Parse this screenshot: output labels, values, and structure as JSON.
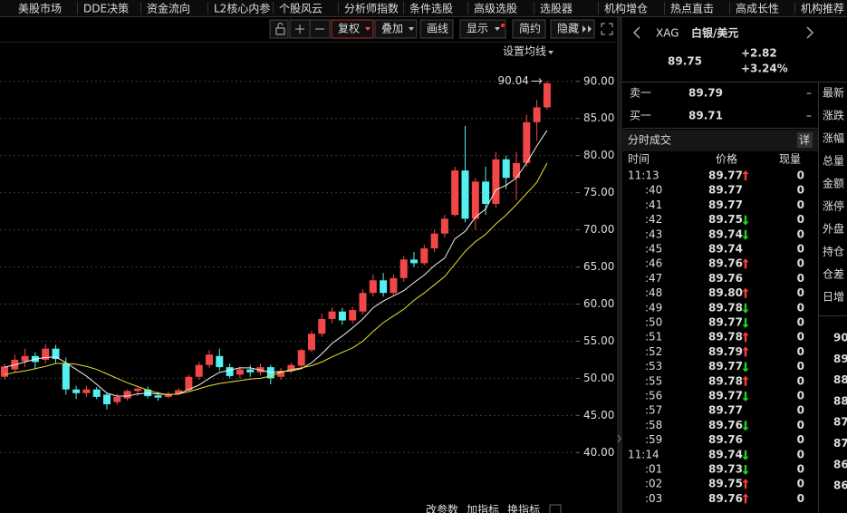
{
  "menu": [
    "美股市场",
    "DDE决策",
    "资金流向",
    "L2核心内参",
    "个股风云",
    "分析师指数",
    "条件选股",
    "高级选股",
    "选股器",
    "机构增仓",
    "热点直击",
    "高成长性",
    "机构推荐"
  ],
  "toolbar": {
    "buttons": [
      "复权",
      "叠加",
      "画线",
      "显示",
      "简约",
      "隐藏"
    ],
    "ma_setting": "设置均线",
    "bottom": [
      "改参数",
      "加指标",
      "换指标"
    ]
  },
  "chart_data": {
    "type": "candlestick",
    "up_color": "#f04848",
    "down_color": "#54f0f0",
    "grid": true,
    "ylim": [
      33.2,
      95.1
    ],
    "yticks": [
      {
        "value": 40,
        "label": "40.00"
      },
      {
        "value": 45,
        "label": "45.00"
      },
      {
        "value": 50,
        "label": "50.00"
      },
      {
        "value": 55,
        "label": "55.00"
      },
      {
        "value": 60,
        "label": "60.00"
      },
      {
        "value": 65,
        "label": "65.00"
      },
      {
        "value": 70,
        "label": "70.00"
      },
      {
        "value": 75,
        "label": "75.00"
      },
      {
        "value": 80,
        "label": "80.00"
      },
      {
        "value": 85,
        "label": "85.00"
      },
      {
        "value": 90,
        "label": "90.00"
      }
    ],
    "open": [
      50.2,
      51.2,
      52.3,
      53.0,
      52.5,
      54.0,
      52.0,
      48.5,
      48.0,
      48.5,
      47.8,
      46.8,
      47.3,
      48.3,
      48.5,
      47.7,
      47.5,
      47.9,
      48.4,
      50.2,
      51.8,
      53.0,
      51.5,
      50.5,
      51.2,
      50.8,
      51.5,
      50.2,
      51.0,
      51.7,
      53.8,
      56.0,
      58.0,
      59.0,
      57.8,
      59.0,
      61.5,
      63.2,
      61.5,
      63.5,
      66.0,
      65.5,
      67.5,
      69.5,
      72.0,
      78.0,
      71.5,
      76.5,
      73.5,
      79.5,
      77.0,
      79.0,
      84.5,
      86.5
    ],
    "high": [
      52.0,
      53.2,
      54.0,
      53.5,
      54.6,
      54.5,
      52.8,
      49.0,
      49.0,
      48.8,
      48.0,
      47.9,
      48.5,
      48.8,
      48.9,
      48.2,
      48.2,
      48.7,
      50.5,
      52.2,
      53.8,
      54.0,
      52.0,
      51.6,
      51.8,
      52.0,
      51.8,
      51.4,
      52.1,
      54.0,
      56.4,
      58.7,
      59.6,
      59.5,
      59.6,
      62.0,
      64.0,
      64.2,
      64.0,
      66.5,
      67.0,
      68.0,
      70.0,
      72.0,
      78.5,
      84.0,
      77.0,
      78.5,
      80.5,
      80.0,
      80.5,
      85.5,
      87.5,
      90.04
    ],
    "low": [
      49.8,
      50.8,
      51.5,
      51.2,
      52.0,
      52.0,
      47.8,
      47.2,
      47.5,
      47.2,
      45.8,
      46.4,
      47.0,
      47.6,
      47.3,
      47.0,
      47.3,
      47.7,
      48.2,
      49.8,
      51.4,
      51.0,
      50.0,
      50.0,
      50.2,
      50.4,
      49.2,
      49.8,
      50.7,
      51.5,
      53.5,
      55.6,
      57.4,
      57.2,
      57.4,
      58.6,
      61.0,
      61.0,
      61.2,
      63.0,
      65.0,
      65.2,
      67.0,
      69.0,
      71.8,
      71.0,
      70.0,
      72.0,
      73.0,
      75.5,
      74.0,
      78.5,
      82.0,
      86.2
    ],
    "close": [
      51.6,
      52.5,
      53.0,
      52.2,
      54.0,
      52.6,
      48.5,
      48.0,
      48.5,
      47.5,
      46.5,
      47.5,
      48.3,
      48.6,
      47.6,
      47.4,
      47.9,
      48.4,
      50.2,
      51.8,
      53.2,
      51.5,
      50.3,
      51.2,
      50.8,
      51.5,
      50.0,
      51.0,
      51.8,
      53.8,
      56.0,
      58.0,
      59.0,
      57.8,
      59.2,
      61.5,
      63.2,
      61.5,
      63.5,
      66.0,
      65.5,
      67.5,
      69.5,
      71.5,
      78.0,
      71.5,
      76.5,
      73.5,
      79.5,
      77.0,
      79.0,
      84.5,
      86.5,
      89.75
    ],
    "ma_lines": [
      {
        "color": "#f0f0f0",
        "values": [
          51.5,
          51.8,
          52.2,
          52.6,
          52.8,
          52.9,
          52.1,
          51.2,
          50.3,
          49.2,
          48.0,
          47.6,
          47.6,
          47.9,
          48.0,
          47.9,
          47.8,
          47.9,
          48.5,
          49.1,
          50.0,
          50.8,
          51.1,
          51.4,
          51.4,
          51.1,
          50.8,
          50.9,
          51.0,
          51.3,
          52.1,
          53.3,
          54.7,
          55.7,
          56.8,
          58.0,
          59.5,
          60.4,
          61.1,
          61.8,
          62.9,
          63.9,
          65.2,
          66.2,
          68.8,
          69.8,
          71.7,
          72.8,
          75.4,
          76.0,
          77.0,
          79.0,
          81.3,
          83.4
        ]
      },
      {
        "color": "#e8e030",
        "values": [
          50.5,
          50.8,
          51.0,
          51.3,
          51.6,
          52.0,
          52.0,
          51.9,
          51.6,
          51.2,
          50.6,
          50.0,
          49.4,
          48.9,
          48.4,
          48.0,
          47.8,
          47.9,
          48.2,
          48.6,
          49.0,
          49.3,
          49.5,
          49.7,
          49.9,
          50.0,
          50.3,
          50.8,
          51.2,
          51.4,
          51.7,
          52.2,
          52.9,
          53.5,
          54.1,
          55.0,
          56.3,
          57.5,
          58.4,
          59.3,
          60.5,
          61.5,
          62.6,
          63.7,
          65.4,
          67.1,
          68.4,
          69.4,
          70.8,
          72.0,
          73.4,
          74.9,
          76.4,
          79.0
        ]
      }
    ],
    "annotation": "90.04"
  },
  "quote": {
    "code": "XAG",
    "name": "白银/美元",
    "price": "89.75",
    "change": "+2.82",
    "change_pct": "+3.24%",
    "sell": {
      "label": "卖一",
      "price": "89.79",
      "vol": "–"
    },
    "buy": {
      "label": "买一",
      "price": "89.71",
      "vol": "–"
    }
  },
  "trades": {
    "title": "分时成交",
    "detail": "详",
    "headers": [
      "时间",
      "价格",
      "现量"
    ],
    "rows": [
      [
        "11:13",
        "89.77",
        "0",
        "up"
      ],
      [
        ":40",
        "89.77",
        "0",
        "none"
      ],
      [
        ":41",
        "89.77",
        "0",
        "none"
      ],
      [
        ":42",
        "89.75",
        "0",
        "down"
      ],
      [
        ":43",
        "89.74",
        "0",
        "down"
      ],
      [
        ":45",
        "89.74",
        "0",
        "none"
      ],
      [
        ":46",
        "89.76",
        "0",
        "up"
      ],
      [
        ":47",
        "89.76",
        "0",
        "none"
      ],
      [
        ":48",
        "89.80",
        "0",
        "up"
      ],
      [
        ":49",
        "89.78",
        "0",
        "down"
      ],
      [
        ":50",
        "89.77",
        "0",
        "down"
      ],
      [
        ":51",
        "89.78",
        "0",
        "up"
      ],
      [
        ":52",
        "89.79",
        "0",
        "up"
      ],
      [
        ":53",
        "89.77",
        "0",
        "down"
      ],
      [
        ":55",
        "89.78",
        "0",
        "up"
      ],
      [
        ":56",
        "89.77",
        "0",
        "down"
      ],
      [
        ":57",
        "89.77",
        "0",
        "none"
      ],
      [
        ":58",
        "89.76",
        "0",
        "down"
      ],
      [
        ":59",
        "89.76",
        "0",
        "none"
      ],
      [
        "11:14",
        "89.74",
        "0",
        "down"
      ],
      [
        ":01",
        "89.73",
        "0",
        "down"
      ],
      [
        ":02",
        "89.75",
        "0",
        "up"
      ],
      [
        ":03",
        "89.76",
        "0",
        "up"
      ]
    ]
  },
  "side": {
    "labels": [
      "最新",
      "涨跌",
      "涨幅",
      "总量",
      "金额",
      "涨停",
      "外盘",
      "持仓",
      "仓差",
      "日增"
    ],
    "depth": [
      "90",
      "89",
      "88",
      "88",
      "87",
      "87",
      "86",
      "86"
    ]
  }
}
